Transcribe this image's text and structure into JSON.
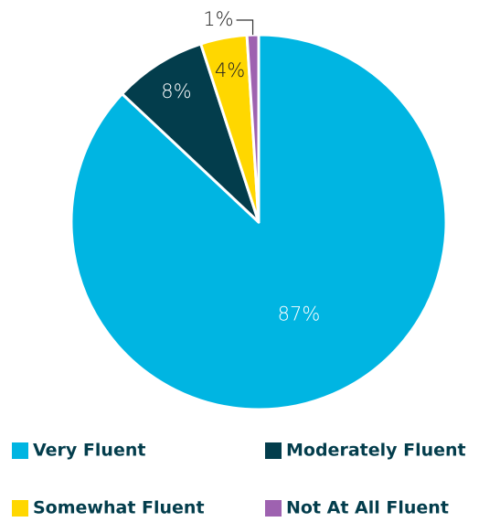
{
  "chart_data": {
    "type": "pie",
    "categories": [
      "Very Fluent",
      "Moderately Fluent",
      "Somewhat Fluent",
      "Not At All Fluent"
    ],
    "values": [
      87,
      8,
      4,
      1
    ],
    "value_labels": [
      "87%",
      "8%",
      "4%",
      "1%"
    ],
    "colors": [
      "#00b5e2",
      "#033d4c",
      "#ffd700",
      "#9e62b0"
    ],
    "legend": "bottom"
  }
}
